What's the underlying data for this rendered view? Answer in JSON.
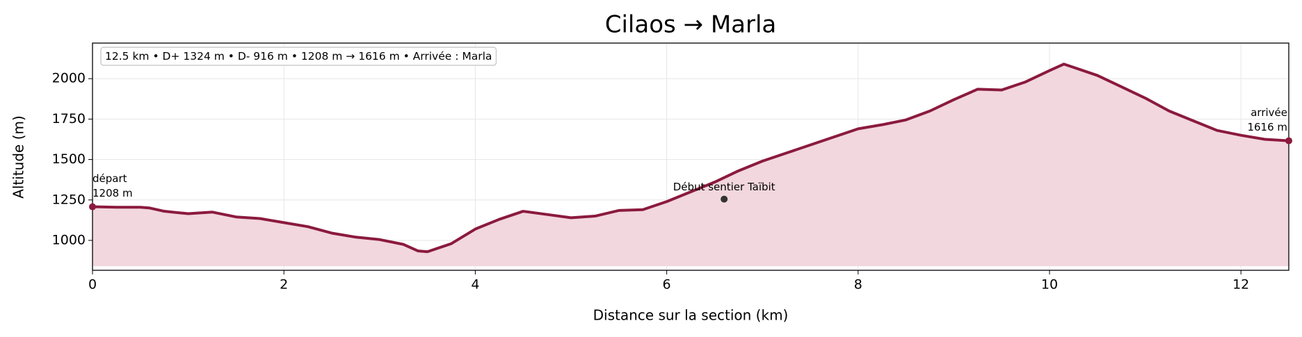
{
  "chart_data": {
    "type": "area",
    "title": "Cilaos → Marla",
    "x_label": "Distance sur la section (km)",
    "y_label": "Altitude (m)",
    "info_box": "12.5 km • D+ 1324 m • D- 916 m • 1208 m → 1616 m • Arrivée : Marla",
    "x": [
      0,
      0.25,
      0.5,
      0.6,
      0.75,
      1.0,
      1.25,
      1.5,
      1.75,
      2.0,
      2.25,
      2.5,
      2.75,
      3.0,
      3.25,
      3.4,
      3.5,
      3.75,
      4.0,
      4.25,
      4.5,
      4.75,
      5.0,
      5.25,
      5.5,
      5.75,
      6.0,
      6.25,
      6.5,
      6.75,
      7.0,
      7.25,
      7.5,
      7.75,
      8.0,
      8.25,
      8.5,
      8.75,
      9.0,
      9.25,
      9.5,
      9.75,
      10.0,
      10.15,
      10.25,
      10.5,
      10.75,
      11.0,
      11.25,
      11.5,
      11.75,
      12.0,
      12.25,
      12.5
    ],
    "values": [
      1208,
      1205,
      1205,
      1200,
      1180,
      1165,
      1175,
      1145,
      1135,
      1110,
      1085,
      1045,
      1020,
      1005,
      975,
      935,
      930,
      980,
      1070,
      1130,
      1180,
      1160,
      1140,
      1150,
      1185,
      1190,
      1240,
      1300,
      1360,
      1430,
      1490,
      1540,
      1590,
      1640,
      1690,
      1715,
      1745,
      1800,
      1870,
      1935,
      1930,
      1980,
      2050,
      2090,
      2070,
      2020,
      1950,
      1880,
      1800,
      1740,
      1680,
      1650,
      1625,
      1616
    ],
    "color": "#8b1a3e",
    "fill_color": "#f2d7de",
    "fill_to": 840,
    "xlim": [
      0,
      12.5
    ],
    "xticks": [
      0,
      2,
      4,
      6,
      8,
      10,
      12
    ],
    "ylim": [
      815,
      2220
    ],
    "yticks": [
      1000,
      1250,
      1500,
      1750,
      2000
    ],
    "grid": true,
    "endpoints": [
      {
        "x": 0,
        "y": 1208,
        "lines": [
          "départ",
          "1208 m"
        ],
        "align": "left"
      },
      {
        "x": 12.5,
        "y": 1616,
        "lines": [
          "arrivée",
          "1616 m"
        ],
        "align": "right"
      }
    ],
    "poi": {
      "x": 6.6,
      "y": 1255,
      "label": "Début sentier Taïbit"
    }
  }
}
